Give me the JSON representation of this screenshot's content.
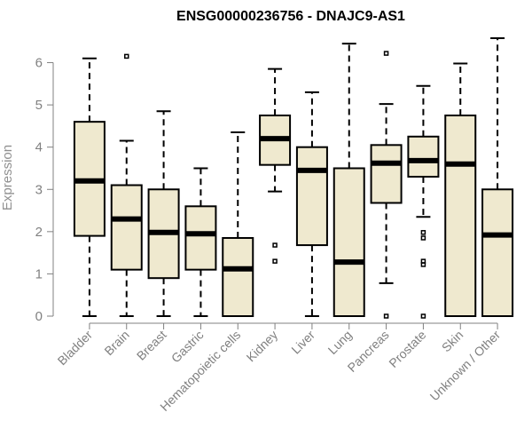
{
  "chart_data": {
    "type": "boxplot",
    "title": "ENSG00000236756 - DNAJC9-AS1",
    "xlabel": "",
    "ylabel": "Expression",
    "ylim": [
      0,
      6.6
    ],
    "yticks": [
      0,
      1,
      2,
      3,
      4,
      5,
      6
    ],
    "box_color": "#efe9cf",
    "line_color": "#000000",
    "axis_color": "#808080",
    "categories": [
      "Bladder",
      "Brain",
      "Breast",
      "Gastric",
      "Hematopoietic cells",
      "Kidney",
      "Liver",
      "Lung",
      "Pancreas",
      "Prostate",
      "Skin",
      "Unknown / Other"
    ],
    "boxes": [
      {
        "whisker_low": 0,
        "q1": 1.9,
        "median": 3.2,
        "q3": 4.6,
        "whisker_high": 6.1,
        "outliers": []
      },
      {
        "whisker_low": 0,
        "q1": 1.1,
        "median": 2.3,
        "q3": 3.1,
        "whisker_high": 4.15,
        "outliers": [
          6.15
        ]
      },
      {
        "whisker_low": 0,
        "q1": 0.9,
        "median": 1.98,
        "q3": 3.0,
        "whisker_high": 4.85,
        "outliers": []
      },
      {
        "whisker_low": 0,
        "q1": 1.1,
        "median": 1.95,
        "q3": 2.6,
        "whisker_high": 3.5,
        "outliers": []
      },
      {
        "whisker_low": 0,
        "q1": 0,
        "median": 1.12,
        "q3": 1.85,
        "whisker_high": 4.35,
        "outliers": []
      },
      {
        "whisker_low": 2.95,
        "q1": 3.58,
        "median": 4.2,
        "q3": 4.75,
        "whisker_high": 5.85,
        "outliers": [
          1.3,
          1.68
        ]
      },
      {
        "whisker_low": 0,
        "q1": 1.68,
        "median": 3.45,
        "q3": 4.0,
        "whisker_high": 5.3,
        "outliers": []
      },
      {
        "whisker_low": 0,
        "q1": 0,
        "median": 1.28,
        "q3": 3.5,
        "whisker_high": 6.45,
        "outliers": []
      },
      {
        "whisker_low": 0.78,
        "q1": 2.68,
        "median": 3.62,
        "q3": 4.05,
        "whisker_high": 5.02,
        "outliers": [
          0,
          6.22
        ]
      },
      {
        "whisker_low": 2.35,
        "q1": 3.3,
        "median": 3.68,
        "q3": 4.25,
        "whisker_high": 5.45,
        "outliers": [
          0,
          1.22,
          1.3,
          1.85,
          1.98
        ]
      },
      {
        "whisker_low": 0,
        "q1": 0,
        "median": 3.6,
        "q3": 4.75,
        "whisker_high": 5.98,
        "outliers": []
      },
      {
        "whisker_low": 0,
        "q1": 0,
        "median": 1.92,
        "q3": 3.0,
        "whisker_high": 6.58,
        "outliers": []
      }
    ]
  }
}
